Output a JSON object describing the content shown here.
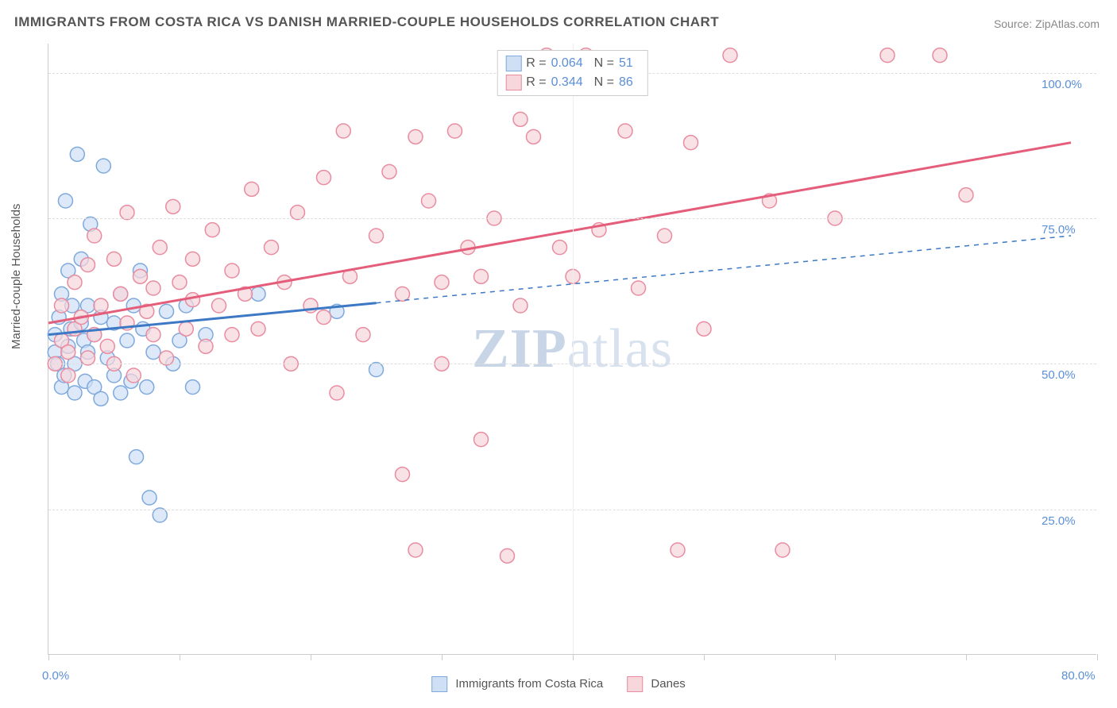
{
  "title": "IMMIGRANTS FROM COSTA RICA VS DANISH MARRIED-COUPLE HOUSEHOLDS CORRELATION CHART",
  "source": "Source: ZipAtlas.com",
  "watermark": "ZIPatlas",
  "y_axis_label": "Married-couple Households",
  "chart": {
    "type": "scatter",
    "xlim": [
      0,
      80
    ],
    "ylim": [
      0,
      105
    ],
    "x_ticks": [
      0,
      10,
      20,
      30,
      40,
      50,
      60,
      70,
      80
    ],
    "x_tick_labels": {
      "0": "0.0%",
      "80": "80.0%"
    },
    "y_ticks": [
      25,
      50,
      75,
      100
    ],
    "y_tick_labels": {
      "25": "25.0%",
      "50": "50.0%",
      "75": "75.0%",
      "100": "100.0%"
    },
    "grid_color": "#dddddd",
    "background_color": "#ffffff",
    "marker_radius": 9,
    "marker_stroke_width": 1.5,
    "series": [
      {
        "name": "Immigrants from Costa Rica",
        "color_fill": "#cfe0f5",
        "color_stroke": "#7ea9dd",
        "R": "0.064",
        "N": "51",
        "trend": {
          "x1": 0,
          "y1": 55,
          "x2": 78,
          "y2": 72,
          "solid_until_x": 25,
          "stroke": "#3c78c4",
          "stroke_width": 3
        },
        "points": [
          [
            0.5,
            52
          ],
          [
            0.5,
            55
          ],
          [
            0.7,
            50
          ],
          [
            0.8,
            58
          ],
          [
            1,
            46
          ],
          [
            1,
            62
          ],
          [
            1.2,
            48
          ],
          [
            1.3,
            78
          ],
          [
            1.5,
            53
          ],
          [
            1.5,
            66
          ],
          [
            1.7,
            56
          ],
          [
            1.8,
            60
          ],
          [
            2,
            45
          ],
          [
            2,
            50
          ],
          [
            2.2,
            86
          ],
          [
            2.5,
            68
          ],
          [
            2.5,
            57
          ],
          [
            2.7,
            54
          ],
          [
            2.8,
            47
          ],
          [
            3,
            52
          ],
          [
            3,
            60
          ],
          [
            3.2,
            74
          ],
          [
            3.5,
            55
          ],
          [
            3.5,
            46
          ],
          [
            4,
            58
          ],
          [
            4,
            44
          ],
          [
            4.2,
            84
          ],
          [
            4.5,
            51
          ],
          [
            5,
            48
          ],
          [
            5,
            57
          ],
          [
            5.5,
            62
          ],
          [
            5.5,
            45
          ],
          [
            6,
            54
          ],
          [
            6.3,
            47
          ],
          [
            6.5,
            60
          ],
          [
            6.7,
            34
          ],
          [
            7,
            66
          ],
          [
            7.2,
            56
          ],
          [
            7.5,
            46
          ],
          [
            7.7,
            27
          ],
          [
            8,
            52
          ],
          [
            8.5,
            24
          ],
          [
            9,
            59
          ],
          [
            9.5,
            50
          ],
          [
            10,
            54
          ],
          [
            10.5,
            60
          ],
          [
            11,
            46
          ],
          [
            12,
            55
          ],
          [
            16,
            62
          ],
          [
            22,
            59
          ],
          [
            25,
            49
          ]
        ]
      },
      {
        "name": "Danes",
        "color_fill": "#f7d6dc",
        "color_stroke": "#e98ca0",
        "R": "0.344",
        "N": "86",
        "trend": {
          "x1": 0,
          "y1": 57,
          "x2": 78,
          "y2": 88,
          "solid_until_x": 78,
          "stroke": "#e45d7a",
          "stroke_width": 3
        },
        "points": [
          [
            0.5,
            50
          ],
          [
            1,
            54
          ],
          [
            1,
            60
          ],
          [
            1.5,
            52
          ],
          [
            1.5,
            48
          ],
          [
            2,
            56
          ],
          [
            2,
            64
          ],
          [
            2.5,
            58
          ],
          [
            3,
            51
          ],
          [
            3,
            67
          ],
          [
            3.5,
            55
          ],
          [
            3.5,
            72
          ],
          [
            4,
            60
          ],
          [
            4.5,
            53
          ],
          [
            5,
            68
          ],
          [
            5,
            50
          ],
          [
            5.5,
            62
          ],
          [
            6,
            76
          ],
          [
            6,
            57
          ],
          [
            6.5,
            48
          ],
          [
            7,
            65
          ],
          [
            7.5,
            59
          ],
          [
            8,
            63
          ],
          [
            8,
            55
          ],
          [
            8.5,
            70
          ],
          [
            9,
            51
          ],
          [
            9.5,
            77
          ],
          [
            10,
            64
          ],
          [
            10.5,
            56
          ],
          [
            11,
            61
          ],
          [
            11,
            68
          ],
          [
            12,
            53
          ],
          [
            12.5,
            73
          ],
          [
            13,
            60
          ],
          [
            14,
            66
          ],
          [
            14,
            55
          ],
          [
            15,
            62
          ],
          [
            15.5,
            80
          ],
          [
            16,
            56
          ],
          [
            17,
            70
          ],
          [
            18,
            64
          ],
          [
            18.5,
            50
          ],
          [
            19,
            76
          ],
          [
            20,
            60
          ],
          [
            21,
            58
          ],
          [
            21,
            82
          ],
          [
            22,
            45
          ],
          [
            22.5,
            90
          ],
          [
            23,
            65
          ],
          [
            24,
            55
          ],
          [
            25,
            72
          ],
          [
            26,
            83
          ],
          [
            27,
            62
          ],
          [
            27,
            31
          ],
          [
            28,
            18
          ],
          [
            28,
            89
          ],
          [
            29,
            78
          ],
          [
            30,
            50
          ],
          [
            30,
            64
          ],
          [
            31,
            90
          ],
          [
            32,
            70
          ],
          [
            33,
            37
          ],
          [
            33,
            65
          ],
          [
            34,
            75
          ],
          [
            35,
            17
          ],
          [
            36,
            60
          ],
          [
            36,
            92
          ],
          [
            37,
            89
          ],
          [
            38,
            103
          ],
          [
            39,
            70
          ],
          [
            40,
            65
          ],
          [
            41,
            103
          ],
          [
            42,
            73
          ],
          [
            44,
            90
          ],
          [
            45,
            63
          ],
          [
            47,
            72
          ],
          [
            48,
            18
          ],
          [
            49,
            88
          ],
          [
            50,
            56
          ],
          [
            52,
            103
          ],
          [
            55,
            78
          ],
          [
            56,
            18
          ],
          [
            60,
            75
          ],
          [
            64,
            103
          ],
          [
            68,
            103
          ],
          [
            70,
            79
          ]
        ]
      }
    ]
  },
  "legend_bottom": [
    {
      "label": "Immigrants from Costa Rica",
      "fill": "#cfe0f5",
      "stroke": "#7ea9dd"
    },
    {
      "label": "Danes",
      "fill": "#f7d6dc",
      "stroke": "#e98ca0"
    }
  ],
  "legend_top_labels": {
    "R": "R =",
    "N": "N ="
  }
}
